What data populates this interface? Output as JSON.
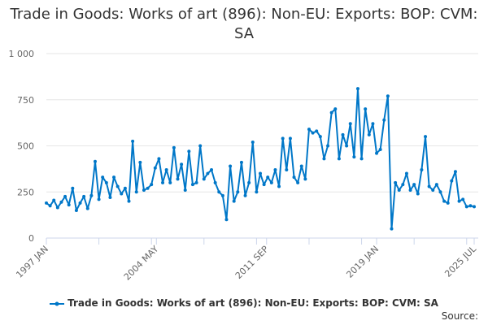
{
  "chart_data": {
    "type": "line",
    "title": "Trade in Goods: Works of art (896): Non-EU: Exports: BOP: CVM: SA",
    "xlabel": "",
    "ylabel": "",
    "ylim": [
      0,
      1000
    ],
    "yticks": [
      0,
      250,
      500,
      750,
      1000
    ],
    "ytick_labels": [
      "0",
      "250",
      "500",
      "750",
      "1 000"
    ],
    "xlim": [
      1997.0,
      2025.5
    ],
    "xticks": [
      1997.0,
      2004.33,
      2011.67,
      2019.0,
      2025.5
    ],
    "xtick_labels": [
      "1997 JAN",
      "2004 MAY",
      "2011 SEP",
      "2019 JAN",
      "2025 JUL"
    ],
    "grid": true,
    "legend_position": "bottom",
    "x_start": 1997.0,
    "x_step": 0.25,
    "series": [
      {
        "name": "Trade in Goods: Works of art (896): Non-EU: Exports: BOP: CVM: SA",
        "color": "#0077c8",
        "values": [
          190,
          175,
          205,
          165,
          195,
          225,
          180,
          270,
          150,
          190,
          225,
          160,
          230,
          415,
          210,
          330,
          300,
          220,
          330,
          280,
          240,
          270,
          200,
          525,
          250,
          410,
          260,
          270,
          290,
          380,
          430,
          300,
          370,
          300,
          490,
          320,
          400,
          260,
          470,
          290,
          300,
          500,
          320,
          350,
          370,
          300,
          250,
          230,
          100,
          390,
          200,
          250,
          410,
          230,
          300,
          520,
          250,
          350,
          290,
          330,
          300,
          370,
          280,
          540,
          370,
          540,
          330,
          300,
          390,
          320,
          590,
          570,
          580,
          550,
          430,
          500,
          680,
          700,
          430,
          560,
          500,
          620,
          440,
          810,
          430,
          700,
          560,
          620,
          460,
          480,
          640,
          770,
          50,
          300,
          260,
          290,
          350,
          260,
          290,
          240,
          370,
          550,
          280,
          260,
          290,
          250,
          200,
          190,
          310,
          360,
          200,
          210,
          170,
          175,
          170
        ]
      }
    ]
  },
  "source_label": "Source:"
}
